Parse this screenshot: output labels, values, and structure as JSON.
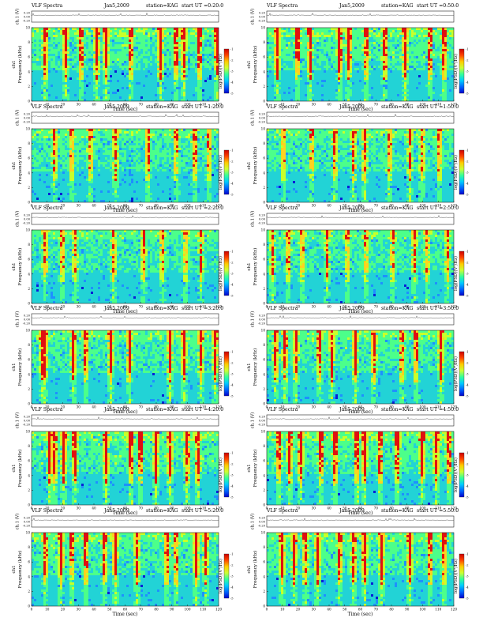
{
  "common": {
    "title_left": "VLF Spectra",
    "date": "Jan5,2009",
    "station": "station=KAG",
    "start_prefix": "start  UT =",
    "ch_label": "ch1",
    "ch_axis_label": "ch.1 (V)",
    "freq_label": "Frequency (kHz)",
    "time_label": "Time (sec)",
    "psd_label": "log(PSD)(V²/Hz)",
    "voltage_ticks": [
      "0.20",
      "0.00",
      "-0.20"
    ],
    "freq_ticks": [
      "0",
      "2",
      "4",
      "6",
      "8",
      "10"
    ],
    "time_ticks": [
      "0",
      "10",
      "20",
      "30",
      "40",
      "50",
      "60",
      "70",
      "80",
      "90",
      "100",
      "110",
      "120"
    ],
    "colorbar_ticks": [
      "-1",
      "-2",
      "-3",
      "-4",
      "-5"
    ],
    "colorbar_colors": [
      "#cc0000",
      "#ff4400",
      "#ffcc00",
      "#ccff33",
      "#33ff99",
      "#00ccff",
      "#0066ff",
      "#0000cc"
    ]
  },
  "chart_data": [
    {
      "type": "heatmap",
      "start_ut": "0:20:0",
      "xlim": [
        0,
        120
      ],
      "ylim": [
        0,
        10
      ],
      "bursts": [
        8,
        21,
        31,
        41,
        47,
        63,
        82,
        92,
        97,
        107,
        118
      ],
      "intensity": 0.65
    },
    {
      "type": "heatmap",
      "start_ut": "0:50:0",
      "xlim": [
        0,
        120
      ],
      "ylim": [
        0,
        10
      ],
      "bursts": [
        6,
        19,
        27,
        46,
        52,
        63,
        75,
        88,
        104,
        113
      ],
      "intensity": 0.7
    },
    {
      "type": "heatmap",
      "start_ut": "1:20:0",
      "xlim": [
        0,
        120
      ],
      "ylim": [
        0,
        10
      ],
      "bursts": [
        14,
        25,
        37,
        53,
        74,
        92,
        104,
        113
      ],
      "intensity": 0.45
    },
    {
      "type": "heatmap",
      "start_ut": "1:50:0",
      "xlim": [
        0,
        120
      ],
      "ylim": [
        0,
        10
      ],
      "bursts": [
        10,
        28,
        43,
        55,
        62,
        78,
        91,
        99,
        110
      ],
      "intensity": 0.4
    },
    {
      "type": "heatmap",
      "start_ut": "2:20:0",
      "xlim": [
        0,
        120
      ],
      "ylim": [
        0,
        10
      ],
      "bursts": [
        8,
        19,
        27,
        52,
        71,
        83,
        98,
        108
      ],
      "intensity": 0.35
    },
    {
      "type": "heatmap",
      "start_ut": "2:50:0",
      "xlim": [
        0,
        120
      ],
      "ylim": [
        0,
        10
      ],
      "bursts": [
        3,
        13,
        22,
        38,
        51,
        63,
        80,
        94,
        102,
        115
      ],
      "intensity": 0.35
    },
    {
      "type": "heatmap",
      "start_ut": "3:20:0",
      "xlim": [
        0,
        120
      ],
      "ylim": [
        0,
        10
      ],
      "bursts": [
        6,
        8,
        26,
        34,
        50,
        62,
        88,
        97,
        108,
        117
      ],
      "intensity": 0.55
    },
    {
      "type": "heatmap",
      "start_ut": "3:50:0",
      "xlim": [
        0,
        120
      ],
      "ylim": [
        0,
        10
      ],
      "bursts": [
        5,
        11,
        18,
        33,
        41,
        56,
        68,
        86,
        95,
        111
      ],
      "intensity": 0.55
    },
    {
      "type": "heatmap",
      "start_ut": "4:20:0",
      "xlim": [
        0,
        120
      ],
      "ylim": [
        0,
        10
      ],
      "bursts": [
        11,
        14,
        20,
        27,
        47,
        63,
        69,
        79,
        88,
        99,
        106
      ],
      "intensity": 0.7
    },
    {
      "type": "heatmap",
      "start_ut": "4:50:0",
      "xlim": [
        0,
        120
      ],
      "ylim": [
        0,
        10
      ],
      "bursts": [
        7,
        14,
        21,
        34,
        43,
        57,
        62,
        72,
        83,
        99,
        108,
        116
      ],
      "intensity": 0.7
    },
    {
      "type": "heatmap",
      "start_ut": "5:20:0",
      "xlim": [
        0,
        120
      ],
      "ylim": [
        0,
        10
      ],
      "bursts": [
        8,
        18,
        25,
        34,
        46,
        53,
        67,
        86,
        92,
        105,
        111
      ],
      "intensity": 0.6
    },
    {
      "type": "heatmap",
      "start_ut": "5:50:0",
      "xlim": [
        0,
        120
      ],
      "ylim": [
        0,
        10
      ],
      "bursts": [
        9,
        17,
        24,
        32,
        46,
        55,
        62,
        73,
        91,
        104,
        113
      ],
      "intensity": 0.6
    }
  ]
}
